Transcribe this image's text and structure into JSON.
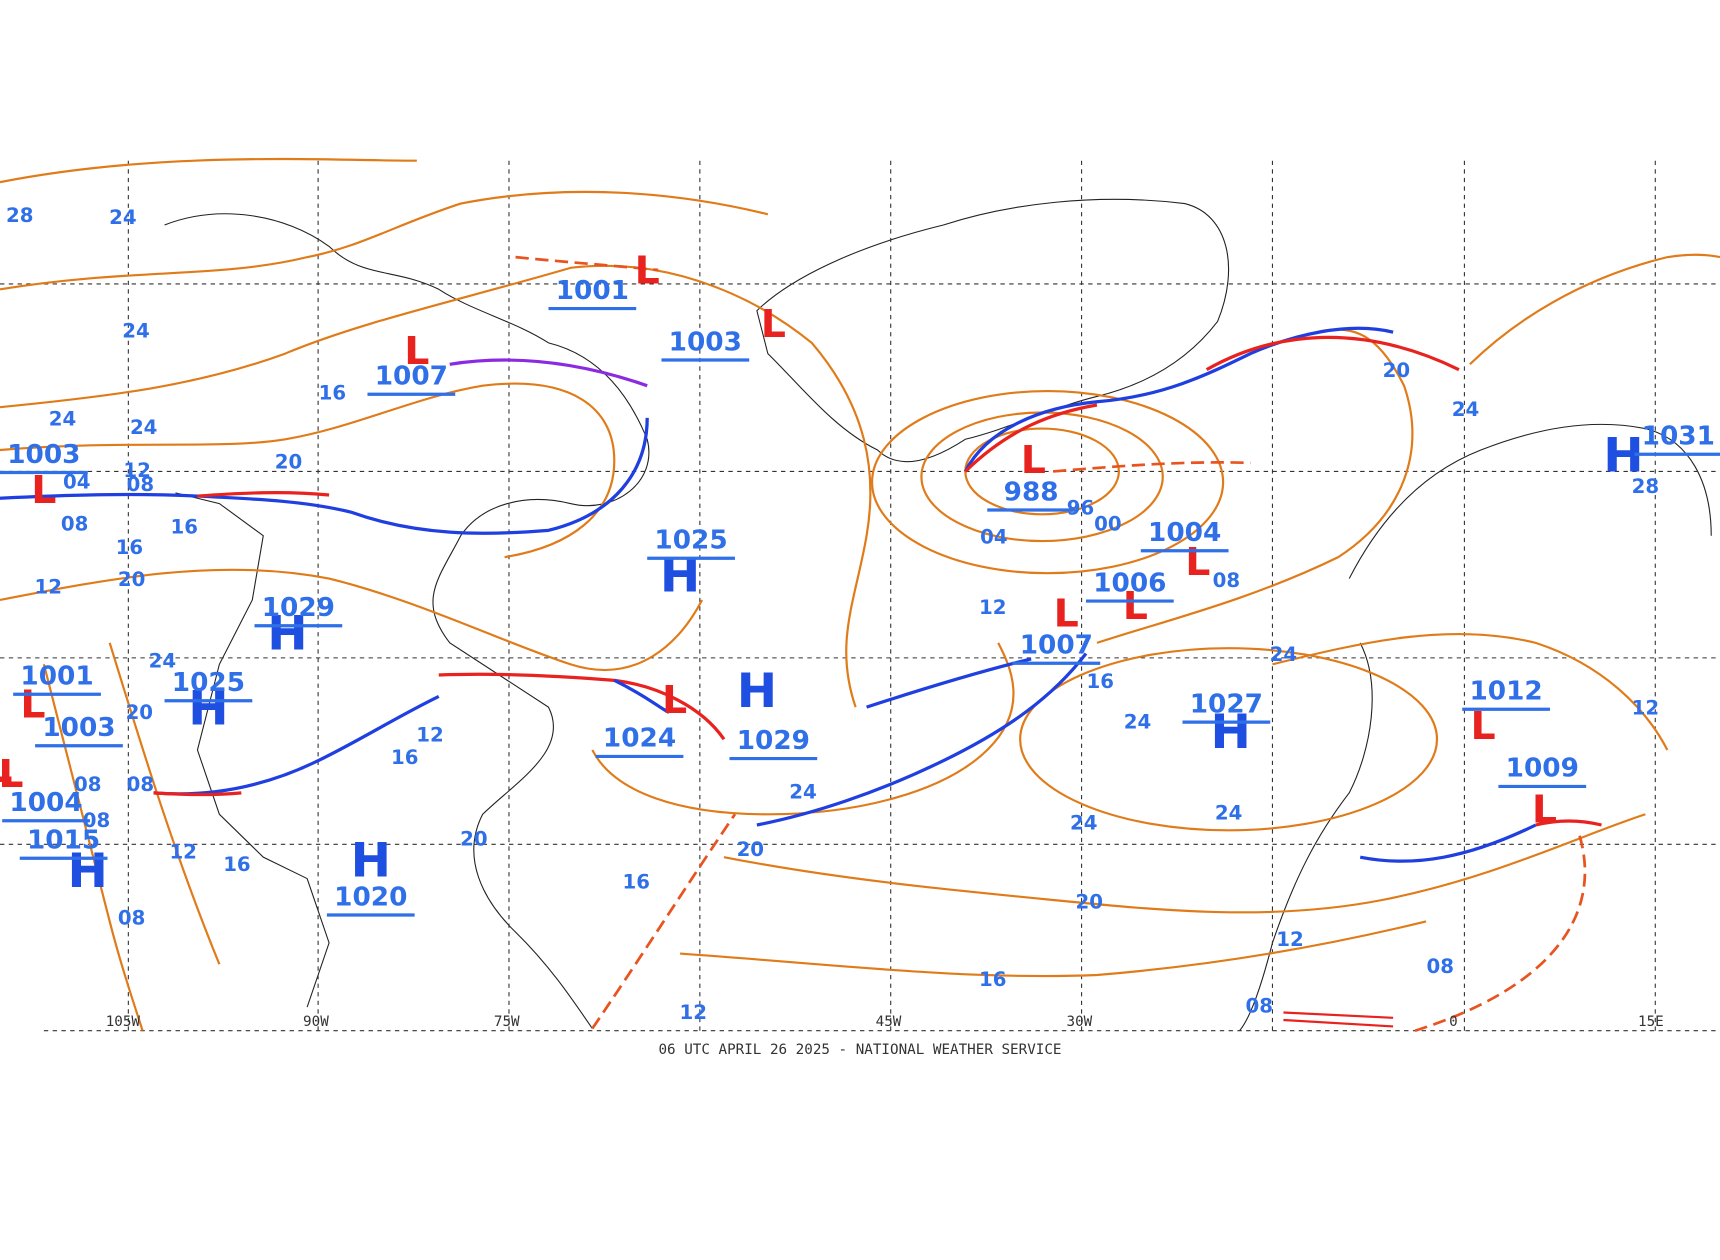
{
  "map": {
    "caption": "06 UTC APRIL 26 2025 - NATIONAL WEATHER SERVICE",
    "longitudes": [
      "105W",
      "90W",
      "75W",
      "45W",
      "30W",
      "0",
      "15E"
    ],
    "lows": [
      {
        "symbol": "L",
        "pressure": "1001"
      },
      {
        "symbol": "L",
        "pressure": "1003"
      },
      {
        "symbol": "L",
        "pressure": "1007"
      },
      {
        "symbol": "L",
        "pressure": "1003"
      },
      {
        "symbol": "L",
        "pressure": "988"
      },
      {
        "symbol": "L",
        "pressure": "1004"
      },
      {
        "symbol": "L",
        "pressure": "1006"
      },
      {
        "symbol": "L",
        "pressure": "1007"
      },
      {
        "symbol": "L",
        "pressure": "1024"
      },
      {
        "symbol": "L",
        "pressure": "1001"
      },
      {
        "symbol": "L",
        "pressure": "1003"
      },
      {
        "symbol": "L",
        "pressure": "1004"
      },
      {
        "symbol": "L",
        "pressure": "1012"
      },
      {
        "symbol": "L",
        "pressure": "1009"
      }
    ],
    "highs": [
      {
        "symbol": "H",
        "pressure": "1025"
      },
      {
        "symbol": "H",
        "pressure": "1029"
      },
      {
        "symbol": "H",
        "pressure": "1025"
      },
      {
        "symbol": "H",
        "pressure": "1029"
      },
      {
        "symbol": "H",
        "pressure": "1027"
      },
      {
        "symbol": "H",
        "pressure": "1020"
      },
      {
        "symbol": "H",
        "pressure": "1015"
      },
      {
        "symbol": "H",
        "pressure": "1031"
      }
    ],
    "isobar_labels": [
      "28",
      "24",
      "24",
      "24",
      "24",
      "16",
      "20",
      "12",
      "08",
      "04",
      "08",
      "16",
      "16",
      "12",
      "20",
      "24",
      "20",
      "12",
      "16",
      "08",
      "08",
      "08",
      "12",
      "16",
      "20",
      "08",
      "16",
      "20",
      "24",
      "12",
      "04",
      "96",
      "00",
      "08",
      "16",
      "24",
      "24",
      "24",
      "24",
      "20",
      "16",
      "12",
      "08",
      "08",
      "12",
      "12",
      "20",
      "24",
      "28"
    ]
  }
}
